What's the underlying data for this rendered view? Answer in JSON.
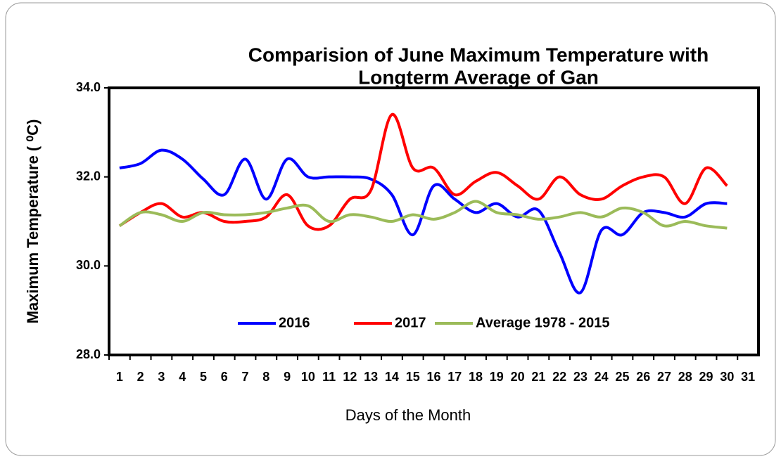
{
  "chart_data": {
    "type": "line",
    "title": [
      "Comparision of June Maximum Temperature with",
      "Longterm Average of Gan"
    ],
    "x_label": "Days of the Month",
    "y_label": "Maximum Temperature ( ⁰C)",
    "categories": [
      1,
      2,
      3,
      4,
      5,
      6,
      7,
      8,
      9,
      10,
      11,
      12,
      13,
      14,
      15,
      16,
      17,
      18,
      19,
      20,
      21,
      22,
      23,
      24,
      25,
      26,
      27,
      28,
      29,
      30,
      31
    ],
    "ylim": [
      28,
      34
    ],
    "yticks": [
      {
        "value": 28,
        "label": "28.0"
      },
      {
        "value": 30,
        "label": "30.0"
      },
      {
        "value": 32,
        "label": "32.0"
      },
      {
        "value": 34,
        "label": "34.0"
      }
    ],
    "smooth": true,
    "series": [
      {
        "name": "2016",
        "color": "#0000ff",
        "values": [
          32.2,
          32.3,
          32.6,
          32.4,
          31.95,
          31.6,
          32.4,
          31.5,
          32.4,
          32.0,
          32.0,
          32.0,
          31.95,
          31.6,
          30.7,
          31.8,
          31.5,
          31.2,
          31.4,
          31.1,
          31.25,
          30.3,
          29.4,
          30.8,
          30.7,
          31.2,
          31.2,
          31.1,
          31.4,
          31.4,
          null
        ]
      },
      {
        "name": "2017",
        "color": "#ff0000",
        "values": [
          30.9,
          31.2,
          31.4,
          31.1,
          31.2,
          31.0,
          31.0,
          31.1,
          31.6,
          30.9,
          30.9,
          31.5,
          31.7,
          33.4,
          32.2,
          32.2,
          31.6,
          31.9,
          32.1,
          31.8,
          31.5,
          32.0,
          31.6,
          31.5,
          31.8,
          32.0,
          32.0,
          31.4,
          32.2,
          31.8,
          null
        ]
      },
      {
        "name": "Average 1978 - 2015",
        "color": "#9bbb59",
        "values": [
          30.9,
          31.2,
          31.15,
          31.0,
          31.2,
          31.15,
          31.15,
          31.2,
          31.3,
          31.35,
          31.0,
          31.15,
          31.1,
          31.0,
          31.15,
          31.05,
          31.2,
          31.45,
          31.2,
          31.15,
          31.05,
          31.1,
          31.2,
          31.1,
          31.3,
          31.2,
          30.9,
          31.0,
          30.9,
          30.85,
          null
        ]
      }
    ]
  }
}
